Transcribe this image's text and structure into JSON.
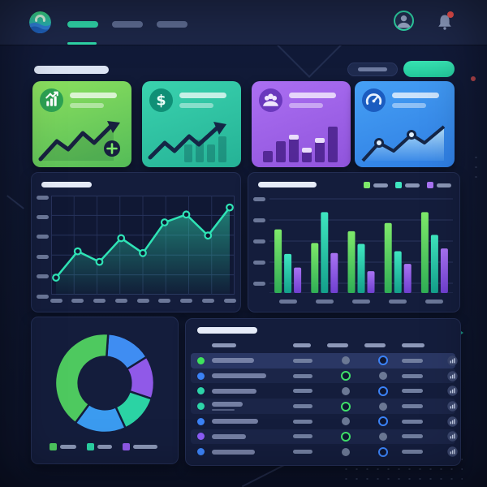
{
  "theme": {
    "page_bg": "#0f1730",
    "topbar_bg": "#1d2748",
    "panel_bg": "#141d3c",
    "panel_border": "#232e54",
    "accent_teal": "#2fd6a8",
    "green": "#3ee35c",
    "blue": "#3b82f6",
    "purple": "#8b5cf6",
    "pill_gray": "#6b7798",
    "pill_white": "#e6ecf8",
    "alert_red": "#f0504e"
  },
  "topbar": {
    "logo_icon": "wave-logo",
    "nav_items": [
      {
        "id": "nav-1",
        "active": true
      },
      {
        "id": "nav-2",
        "active": false
      },
      {
        "id": "nav-3",
        "active": false
      }
    ],
    "avatar_icon": "user-avatar",
    "notification_unread": true
  },
  "header": {
    "title_placeholder": true,
    "buttons": [
      {
        "id": "secondary",
        "variant": "ghost"
      },
      {
        "id": "primary",
        "variant": "solid",
        "color": "#2fd6a8"
      }
    ]
  },
  "stat_cards": [
    {
      "id": "card-growth",
      "icon": "bar-growth-icon",
      "color_top": "#8ce05f",
      "color_bottom": "#54bc58",
      "icon_bg": "#2da153",
      "trend": "zigzag-arrow-plus"
    },
    {
      "id": "card-revenue",
      "icon": "dollar-icon",
      "color_top": "#3ad2ae",
      "color_bottom": "#25b296",
      "icon_bg": "#0f8f76",
      "trend": "zigzag-arrow-bars"
    },
    {
      "id": "card-users",
      "icon": "users-icon",
      "color_top": "#ab6ff2",
      "color_bottom": "#9054dc",
      "icon_bg": "#6a38bd",
      "trend": "bars-ascending"
    },
    {
      "id": "card-performance",
      "icon": "gauge-icon",
      "color_top": "#46a0f5",
      "color_bottom": "#2e7de2",
      "icon_bg": "#1b5cc0",
      "trend": "line-area-dots"
    }
  ],
  "chart_data": [
    {
      "id": "main-line-chart",
      "type": "line",
      "title": "placeholder-pill",
      "values": [
        1.2,
        4.2,
        3.0,
        5.7,
        4.0,
        7.5,
        8.4,
        6.0,
        9.2
      ],
      "ylim": [
        0,
        10
      ],
      "x_tick_count": 9,
      "y_tick_count": 6,
      "grid": true,
      "line_color": "#2fe3b5",
      "marker_fill": "#0f1731",
      "area_fill": "#2fe3b5",
      "legend_position": "none"
    },
    {
      "id": "main-bar-chart",
      "type": "bar",
      "title": "placeholder-pill",
      "categories_count": 5,
      "ylim": [
        0,
        10
      ],
      "y_tick_count": 5,
      "grid": true,
      "legend_position": "top-right",
      "series": [
        {
          "name": "series-green",
          "color_top": "#7ee96a",
          "color_bottom": "#2fae55",
          "values": [
            7.0,
            5.5,
            6.8,
            7.7,
            8.9
          ]
        },
        {
          "name": "series-teal",
          "color_top": "#3fe6c0",
          "color_bottom": "#13a08a",
          "values": [
            4.3,
            8.9,
            5.4,
            4.6,
            6.4
          ]
        },
        {
          "name": "series-purple",
          "color_top": "#a873f2",
          "color_bottom": "#6f3fd0",
          "values": [
            2.8,
            4.4,
            2.4,
            3.2,
            4.9
          ]
        }
      ]
    },
    {
      "id": "donut-chart",
      "type": "pie",
      "start_angle_deg": -86,
      "inner_radius_ratio": 0.53,
      "slices": [
        {
          "name": "slice-blue",
          "value": 15,
          "color": "#3f8df2"
        },
        {
          "name": "slice-purple",
          "value": 14,
          "color": "#9059e8"
        },
        {
          "name": "slice-teal",
          "value": 13,
          "color": "#2bd3a4"
        },
        {
          "name": "slice-blue-2",
          "value": 17,
          "color": "#3b9bf0"
        },
        {
          "name": "slice-green",
          "value": 41,
          "color": "#4ec95f"
        }
      ],
      "legend_colors": [
        "#4ec95f",
        "#2bd3a4",
        "#9059e8"
      ],
      "legend_pill_widths": [
        20,
        18,
        30
      ],
      "legend_position": "bottom"
    }
  ],
  "table": {
    "title_placeholder": true,
    "column_count": 5,
    "header_pill_widths": [
      30,
      22,
      26,
      26,
      28
    ],
    "rows": [
      {
        "dot_color": "#3ee35c",
        "name_width": 52,
        "status_a": "dot",
        "status_b": "ring-blue",
        "highlight": true
      },
      {
        "dot_color": "#3b82f6",
        "name_width": 67,
        "status_a": "ring-green",
        "status_b": "dot",
        "highlight": false
      },
      {
        "dot_color": "#2dd4a8",
        "name_width": 55,
        "status_a": "dot",
        "status_b": "ring-blue",
        "highlight": false
      },
      {
        "dot_color": "#2dd4a8",
        "name_width": 38,
        "subline": true,
        "status_a": "ring-green",
        "status_b": "dot",
        "highlight": false
      },
      {
        "dot_color": "#3b82f6",
        "name_width": 57,
        "status_a": "dot",
        "status_b": "ring-blue",
        "highlight": false
      },
      {
        "dot_color": "#8b5cf6",
        "name_width": 42,
        "status_a": "ring-green",
        "status_b": "dot",
        "highlight": false
      },
      {
        "dot_color": "#3b82f6",
        "name_width": 53,
        "status_a": "dot",
        "status_b": "ring-blue",
        "highlight": false
      }
    ]
  }
}
